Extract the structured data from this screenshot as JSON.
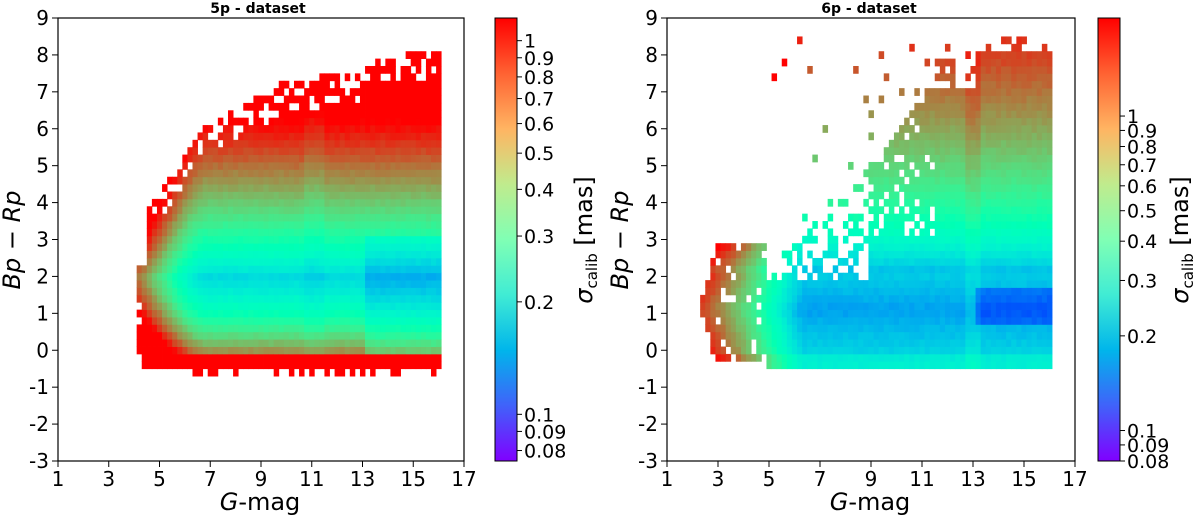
{
  "chart_data": [
    {
      "type": "heatmap",
      "title": "5p - dataset",
      "xlabel_var": "G",
      "xlabel_rest": "-mag",
      "ylabel": "Bp − Rp",
      "xlim": [
        1,
        17
      ],
      "ylim": [
        -3,
        9
      ],
      "xticks": [
        "1",
        "3",
        "5",
        "7",
        "9",
        "11",
        "13",
        "15",
        "17"
      ],
      "yticks": [
        "-3",
        "-2",
        "-1",
        "0",
        "1",
        "2",
        "3",
        "4",
        "5",
        "6",
        "7",
        "8",
        "9"
      ],
      "colorbar": {
        "label_sym": "σ",
        "label_sub": "calib",
        "label_unit": "[mas]",
        "scale": "log",
        "range": [
          0.075,
          1.15
        ],
        "ticks": [
          "0.08",
          "0.09",
          "0.1",
          "0.2",
          "0.3",
          "0.4",
          "0.5",
          "0.6",
          "0.7",
          "0.8",
          "0.9",
          "1"
        ]
      },
      "grid": {
        "g_min": 4.1,
        "g_max": 16.1,
        "dg": 0.2,
        "c_min": -0.7,
        "c_max": 8.3,
        "dc": 0.2
      }
    },
    {
      "type": "heatmap",
      "title": "6p - dataset",
      "xlabel_var": "G",
      "xlabel_rest": "-mag",
      "ylabel": "Bp − Rp",
      "xlim": [
        1,
        17
      ],
      "ylim": [
        -3,
        9
      ],
      "xticks": [
        "1",
        "3",
        "5",
        "7",
        "9",
        "11",
        "13",
        "15",
        "17"
      ],
      "yticks": [
        "-3",
        "-2",
        "-1",
        "0",
        "1",
        "2",
        "3",
        "4",
        "5",
        "6",
        "7",
        "8",
        "9"
      ],
      "colorbar": {
        "label_sym": "σ",
        "label_sub": "calib",
        "label_unit": "[mas]",
        "scale": "log",
        "range": [
          0.08,
          2.05
        ],
        "ticks": [
          "0.08",
          "0.09",
          "0.1",
          "0.2",
          "0.3",
          "0.4",
          "0.5",
          "0.6",
          "0.7",
          "0.8",
          "0.9",
          "1"
        ]
      },
      "grid": {
        "g_min": 2.1,
        "g_max": 16.1,
        "dg": 0.2,
        "c_min": -0.5,
        "c_max": 8.5,
        "dc": 0.2
      }
    }
  ]
}
